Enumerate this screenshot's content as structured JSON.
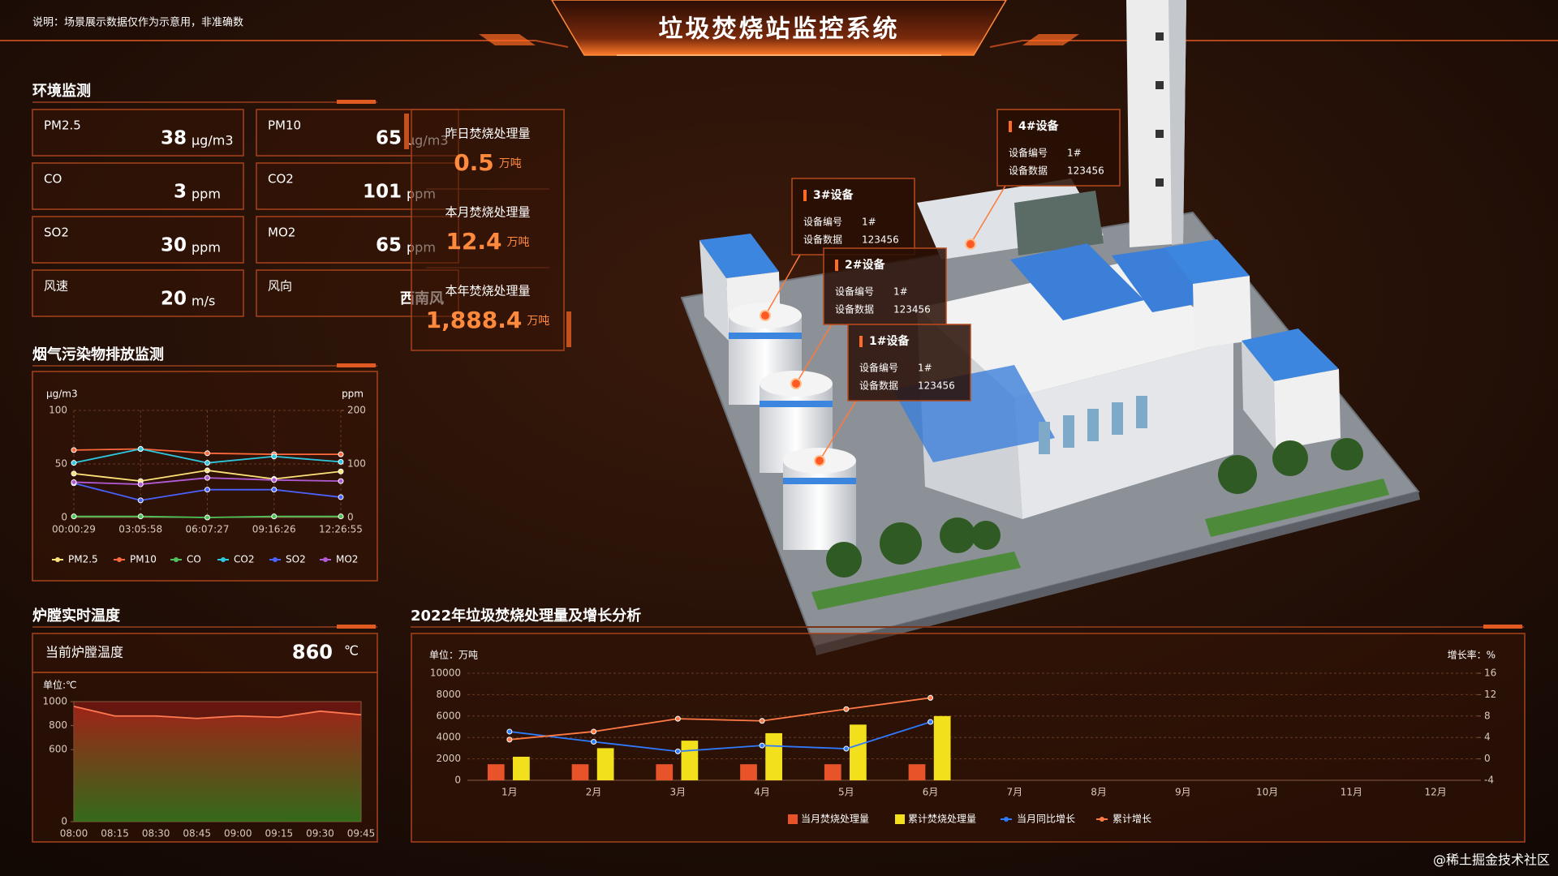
{
  "header": {
    "note": "说明：场景展示数据仅作为示意用，非准确数",
    "title": "垃圾焚烧站监控系统"
  },
  "environment": {
    "title": "环境监测",
    "items": [
      {
        "label": "PM2.5",
        "value": 38,
        "unit": "μg/m3"
      },
      {
        "label": "PM10",
        "value": 65,
        "unit": "μg/m3"
      },
      {
        "label": "CO",
        "value": 3,
        "unit": "ppm"
      },
      {
        "label": "CO2",
        "value": 101,
        "unit": "ppm"
      },
      {
        "label": "SO2",
        "value": 30,
        "unit": "ppm"
      },
      {
        "label": "MO2",
        "value": 65,
        "unit": "ppm"
      },
      {
        "label": "风速",
        "value": 20,
        "unit": "m/s"
      },
      {
        "label": "风向",
        "value": "西南风"
      }
    ]
  },
  "incineration": [
    {
      "label": "昨日焚烧处理量",
      "value": 0.5,
      "unit": "万吨"
    },
    {
      "label": "本月焚烧处理量",
      "value": 12.4,
      "unit": "万吨"
    },
    {
      "label": "本年焚烧处理量",
      "value": "1,888.4",
      "unit": "万吨"
    }
  ],
  "devices": [
    {
      "name": "4#设备",
      "id_label": "设备编号",
      "id": "1#",
      "data_label": "设备数据",
      "data": 123456
    },
    {
      "name": "3#设备",
      "id_label": "设备编号",
      "id": "1#",
      "data_label": "设备数据",
      "data": 123456
    },
    {
      "name": "2#设备",
      "id_label": "设备编号",
      "id": "1#",
      "data_label": "设备数据",
      "data": 123456
    },
    {
      "name": "1#设备",
      "id_label": "设备编号",
      "id": "1#",
      "data_label": "设备数据",
      "data": 123456
    }
  ],
  "furnace": {
    "title": "炉膛实时温度",
    "current_label": "当前炉膛温度",
    "current": 860,
    "unit": "℃"
  },
  "watermark": "@稀土掘金技术社区",
  "chart_data": [
    {
      "type": "line",
      "title": "烟气污染物排放监测",
      "y_label": "μg/m3",
      "y2_label": "ppm",
      "categories": [
        "00:00:29",
        "03:05:58",
        "06:07:27",
        "09:16:26",
        "12:26:55"
      ],
      "ylim": [
        0,
        100
      ],
      "yticks": [
        0,
        50,
        100
      ],
      "y2lim": [
        0,
        200
      ],
      "y2ticks": [
        0,
        100,
        200
      ],
      "grid": true,
      "series": [
        {
          "name": "PM2.5",
          "color": "#ffe27a",
          "values": [
            41,
            34,
            44,
            36,
            43
          ]
        },
        {
          "name": "PM10",
          "color": "#ff6a3d",
          "values": [
            63,
            64,
            60,
            59,
            59
          ]
        },
        {
          "name": "CO",
          "color": "#4fc35a",
          "values": [
            1,
            1,
            0,
            1,
            1
          ]
        },
        {
          "name": "CO2",
          "color": "#2ec8e0",
          "values": [
            51,
            64,
            51,
            57,
            52
          ]
        },
        {
          "name": "SO2",
          "color": "#4a62ff",
          "values": [
            32,
            16,
            26,
            26,
            19
          ]
        },
        {
          "name": "MO2",
          "color": "#b25ad6",
          "values": [
            33,
            31,
            37,
            35,
            34
          ]
        }
      ]
    },
    {
      "type": "area",
      "y_label": "单位:℃",
      "categories": [
        "08:00",
        "08:15",
        "08:30",
        "08:45",
        "09:00",
        "09:15",
        "09:30",
        "09:45"
      ],
      "ylim": [
        0,
        1000
      ],
      "yticks": [
        0,
        600,
        800,
        1000
      ],
      "series": [
        {
          "color": "#ff7a50",
          "values": [
            960,
            880,
            880,
            860,
            880,
            870,
            920,
            890
          ]
        }
      ]
    },
    {
      "type": "bar-line",
      "title": "2022年垃圾焚烧处理量及增长分析",
      "y_label": "单位：万吨",
      "y2_label": "增长率：%",
      "categories": [
        "1月",
        "2月",
        "3月",
        "4月",
        "5月",
        "6月",
        "7月",
        "8月",
        "9月",
        "10月",
        "11月",
        "12月"
      ],
      "ylim": [
        0,
        10000
      ],
      "yticks": [
        0,
        2000,
        4000,
        6000,
        8000,
        10000
      ],
      "y2lim": [
        -4,
        16
      ],
      "y2ticks": [
        -4,
        0,
        4,
        8,
        12,
        16
      ],
      "grid": true,
      "series": [
        {
          "name": "当月焚烧处理量",
          "type": "bar",
          "color": "#e8532a",
          "values": [
            1500,
            1500,
            1500,
            1500,
            1500,
            1500,
            null,
            null,
            null,
            null,
            null,
            null
          ]
        },
        {
          "name": "累计焚烧处理量",
          "type": "bar",
          "color": "#f2e01c",
          "values": [
            2200,
            3000,
            3700,
            4400,
            5200,
            6000,
            null,
            null,
            null,
            null,
            null,
            null
          ]
        },
        {
          "name": "当月同比增长",
          "type": "line",
          "axis": "y2",
          "color": "#2f7bff",
          "values": [
            5.1,
            3.2,
            1.4,
            2.5,
            1.9,
            6.9,
            null,
            null,
            null,
            null,
            null,
            null
          ]
        },
        {
          "name": "累计增长",
          "type": "line",
          "axis": "y2",
          "color": "#ff7a45",
          "values": [
            3.6,
            5.1,
            7.5,
            7.1,
            9.3,
            11.4,
            null,
            null,
            null,
            null,
            null,
            null
          ]
        }
      ]
    }
  ]
}
